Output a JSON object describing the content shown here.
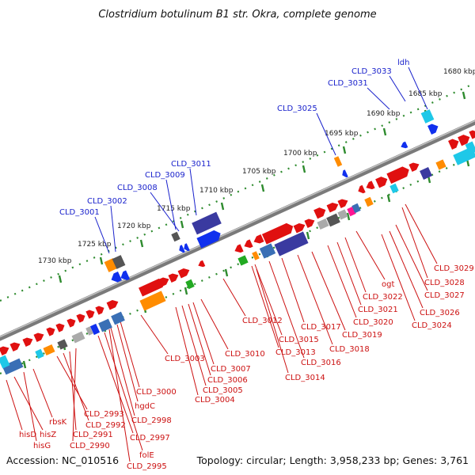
{
  "title": "Clostridium botulinum B1 str. Okra, complete genome",
  "footer": {
    "accession": "Accession: NC_010516",
    "topology": "Topology: circular; Length: 3,958,233 bp; Genes: 3,761"
  },
  "colors": {
    "top_labels": "#1a22cc",
    "bottom_labels": "#cc1111",
    "ticks": "#2e8b2e",
    "backbone": "#8a8a8a"
  },
  "scale": [
    {
      "label": "1730 kbp"
    },
    {
      "label": "1725 kbp"
    },
    {
      "label": "1720 kbp"
    },
    {
      "label": "1715 kbp"
    },
    {
      "label": "1710 kbp"
    },
    {
      "label": "1705 kbp"
    },
    {
      "label": "1700 kbp"
    },
    {
      "label": "1695 kbp"
    },
    {
      "label": "1690 kbp"
    },
    {
      "label": "1685 kbp"
    },
    {
      "label": "1680 kbp"
    }
  ],
  "top_labels": [
    {
      "text": "CLD_3001"
    },
    {
      "text": "CLD_3002"
    },
    {
      "text": "CLD_3008"
    },
    {
      "text": "CLD_3009"
    },
    {
      "text": "CLD_3011"
    },
    {
      "text": "CLD_3025"
    },
    {
      "text": "CLD_3031"
    },
    {
      "text": "CLD_3033"
    },
    {
      "text": "ldh"
    }
  ],
  "bottom_labels": [
    {
      "text": "hisD"
    },
    {
      "text": "hisZ"
    },
    {
      "text": "hisG"
    },
    {
      "text": "rbsK"
    },
    {
      "text": "CLD_2993"
    },
    {
      "text": "CLD_2992"
    },
    {
      "text": "CLD_2991"
    },
    {
      "text": "CLD_2990"
    },
    {
      "text": "CLD_2997"
    },
    {
      "text": "folE"
    },
    {
      "text": "CLD_2995"
    },
    {
      "text": "CLD_2998"
    },
    {
      "text": "hgdC"
    },
    {
      "text": "CLD_3000"
    },
    {
      "text": "CLD_3003"
    },
    {
      "text": "CLD_3004"
    },
    {
      "text": "CLD_3005"
    },
    {
      "text": "CLD_3006"
    },
    {
      "text": "CLD_3007"
    },
    {
      "text": "CLD_3010"
    },
    {
      "text": "CLD_3012"
    },
    {
      "text": "CLD_3014"
    },
    {
      "text": "CLD_3013"
    },
    {
      "text": "CLD_3015"
    },
    {
      "text": "CLD_3016"
    },
    {
      "text": "CLD_3017"
    },
    {
      "text": "CLD_3018"
    },
    {
      "text": "CLD_3019"
    },
    {
      "text": "CLD_3020"
    },
    {
      "text": "CLD_3021"
    },
    {
      "text": "CLD_3022"
    },
    {
      "text": "ogt"
    },
    {
      "text": "CLD_3024"
    },
    {
      "text": "CLD_3026"
    },
    {
      "text": "CLD_3027"
    },
    {
      "text": "CLD_3028"
    },
    {
      "text": "CLD_3029"
    }
  ]
}
